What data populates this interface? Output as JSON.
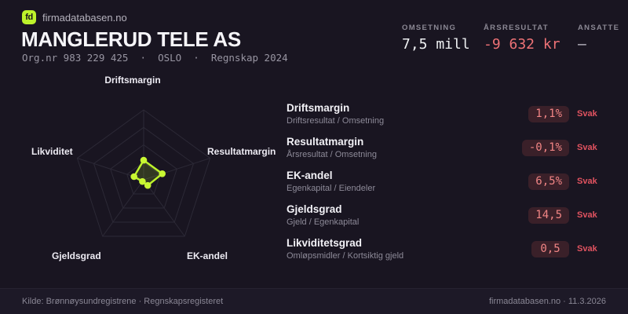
{
  "colors": {
    "background": "#191521",
    "accent_lime": "#bdf22b",
    "negative_red": "#ee7276",
    "rating_red": "#e25360",
    "pill_background": "#3a2029",
    "grid": "#2c2936",
    "text_primary": "#f4f3f7",
    "text_muted": "#8d8a98"
  },
  "header": {
    "logo_text": "fd",
    "site": "firmadatabasen.no",
    "company": "MANGLERUD TELE AS",
    "org_line": "Org.nr 983 229 425  ·  OSLO  ·  Regnskap 2024"
  },
  "stats": {
    "items": [
      {
        "label": "OMSETNING",
        "value": "7,5 mill",
        "tone": "default"
      },
      {
        "label": "ÅRSRESULTAT",
        "value": "-9 632 kr",
        "tone": "negative"
      },
      {
        "label": "ANSATTE",
        "value": "–",
        "tone": "muted"
      }
    ]
  },
  "chart_data": {
    "type": "radar",
    "title": "",
    "categories": [
      "Driftsmargin",
      "Resultatmargin",
      "EK-andel",
      "Gjeldsgrad",
      "Likviditet"
    ],
    "series": [
      {
        "name": "Regnskap 2024",
        "values_normalized": [
          0.28,
          0.28,
          0.1,
          0.03,
          0.145
        ]
      }
    ],
    "rings": 4,
    "range": [
      0,
      1
    ],
    "legend": "off",
    "grid": "on"
  },
  "metrics": {
    "items": [
      {
        "name": "Driftsmargin",
        "formula": "Driftsresultat / Omsetning",
        "value": "1,1%",
        "rating": "Svak"
      },
      {
        "name": "Resultatmargin",
        "formula": "Årsresultat / Omsetning",
        "value": "-0,1%",
        "rating": "Svak"
      },
      {
        "name": "EK-andel",
        "formula": "Egenkapital / Eiendeler",
        "value": "6,5%",
        "rating": "Svak"
      },
      {
        "name": "Gjeldsgrad",
        "formula": "Gjeld / Egenkapital",
        "value": "14,5",
        "rating": "Svak"
      },
      {
        "name": "Likviditetsgrad",
        "formula": "Omløpsmidler / Kortsiktig gjeld",
        "value": "0,5",
        "rating": "Svak"
      }
    ]
  },
  "footer": {
    "source": "Kilde: Brønnøysundregistrene · Regnskapsregisteret",
    "site_date": "firmadatabasen.no · 11.3.2026"
  }
}
